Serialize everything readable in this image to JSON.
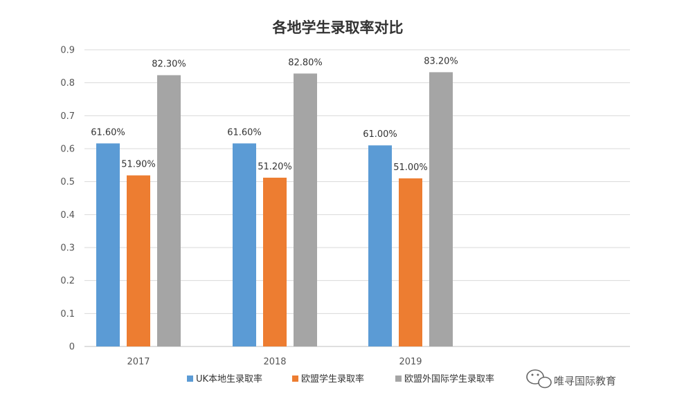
{
  "chart_data": {
    "type": "bar",
    "title": "各地学生录取率对比",
    "categories": [
      "2017",
      "2018",
      "2019"
    ],
    "series": [
      {
        "name": "UK本地生录取率",
        "color": "#5b9bd5",
        "values": [
          0.616,
          0.616,
          0.61
        ],
        "labels": [
          "61.60%",
          "61.60%",
          "61.00%"
        ]
      },
      {
        "name": "欧盟学生录取率",
        "color": "#ed7d31",
        "values": [
          0.519,
          0.512,
          0.51
        ],
        "labels": [
          "51.90%",
          "51.20%",
          "51.00%"
        ]
      },
      {
        "name": "欧盟外国际学生录取率",
        "color": "#a5a5a5",
        "values": [
          0.823,
          0.828,
          0.832
        ],
        "labels": [
          "82.30%",
          "82.80%",
          "83.20%"
        ]
      }
    ],
    "yticks": [
      "0",
      "0.1",
      "0.2",
      "0.3",
      "0.4",
      "0.5",
      "0.6",
      "0.7",
      "0.8",
      "0.9"
    ],
    "ylim": [
      0,
      0.9
    ],
    "grid": true,
    "legend": "bottom"
  },
  "watermark": {
    "text": "唯寻国际教育"
  }
}
